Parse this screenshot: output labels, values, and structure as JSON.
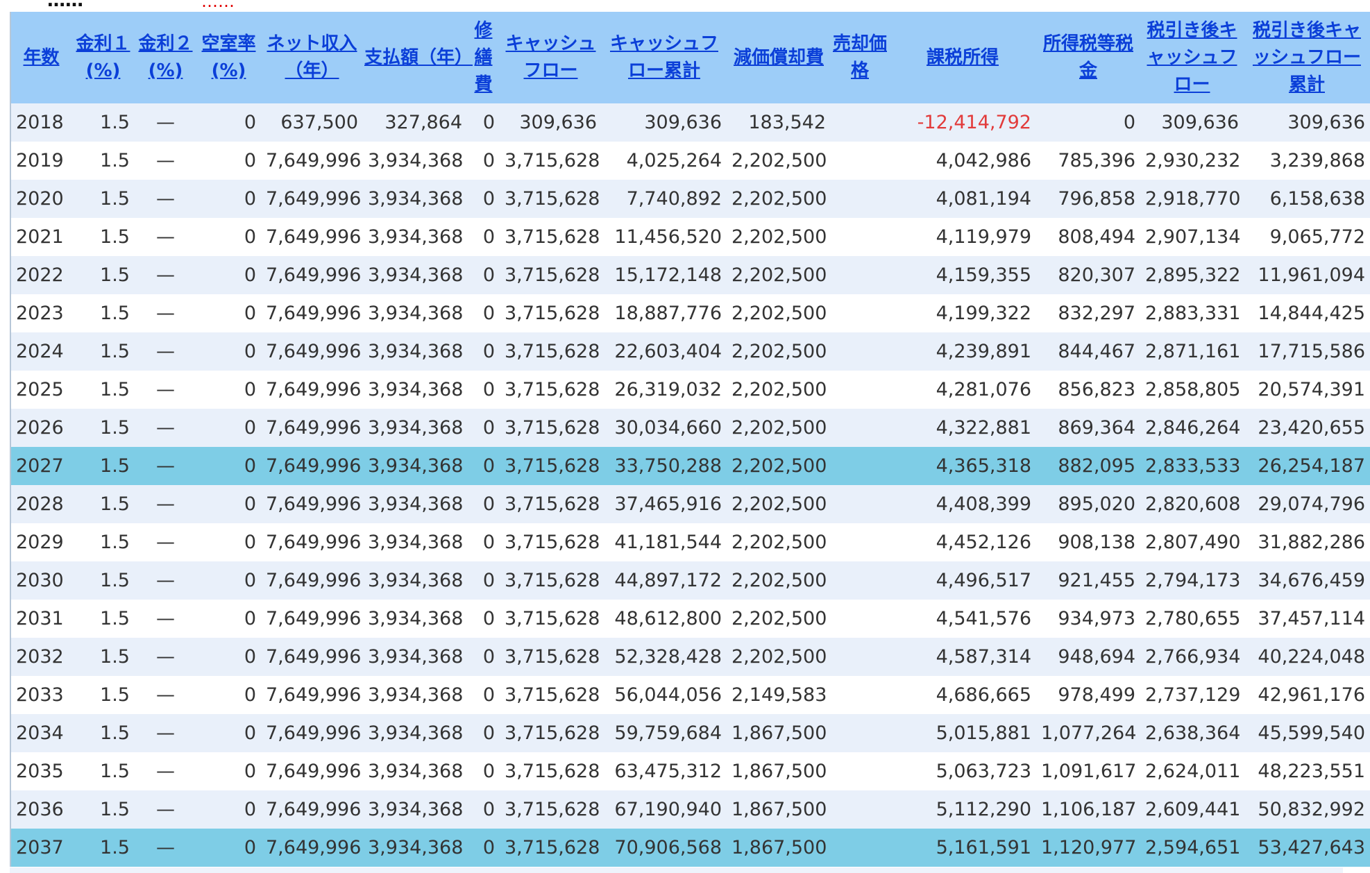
{
  "page": {
    "heading_partial": "……",
    "note_partial": "……"
  },
  "table": {
    "headers": [
      "年数",
      "金利１(%)",
      "金利２(%)",
      "空室率(%)",
      "ネット収入（年）",
      "支払額（年）",
      "修繕費",
      "キャッシュフロー",
      "キャッシュフロー累計",
      "減価償却費",
      "売却価格",
      "課税所得",
      "所得税等税金",
      "税引き後キャッシュフロー",
      "税引き後キャッシュフロー累計"
    ],
    "highlight_years": [
      "2027",
      "2037"
    ],
    "rows": [
      [
        "2018",
        "1.5",
        "—",
        "0",
        "637,500",
        "327,864",
        "0",
        "309,636",
        "309,636",
        "183,542",
        "",
        "-12,414,792",
        "0",
        "309,636",
        "309,636"
      ],
      [
        "2019",
        "1.5",
        "—",
        "0",
        "7,649,996",
        "3,934,368",
        "0",
        "3,715,628",
        "4,025,264",
        "2,202,500",
        "",
        "4,042,986",
        "785,396",
        "2,930,232",
        "3,239,868"
      ],
      [
        "2020",
        "1.5",
        "—",
        "0",
        "7,649,996",
        "3,934,368",
        "0",
        "3,715,628",
        "7,740,892",
        "2,202,500",
        "",
        "4,081,194",
        "796,858",
        "2,918,770",
        "6,158,638"
      ],
      [
        "2021",
        "1.5",
        "—",
        "0",
        "7,649,996",
        "3,934,368",
        "0",
        "3,715,628",
        "11,456,520",
        "2,202,500",
        "",
        "4,119,979",
        "808,494",
        "2,907,134",
        "9,065,772"
      ],
      [
        "2022",
        "1.5",
        "—",
        "0",
        "7,649,996",
        "3,934,368",
        "0",
        "3,715,628",
        "15,172,148",
        "2,202,500",
        "",
        "4,159,355",
        "820,307",
        "2,895,322",
        "11,961,094"
      ],
      [
        "2023",
        "1.5",
        "—",
        "0",
        "7,649,996",
        "3,934,368",
        "0",
        "3,715,628",
        "18,887,776",
        "2,202,500",
        "",
        "4,199,322",
        "832,297",
        "2,883,331",
        "14,844,425"
      ],
      [
        "2024",
        "1.5",
        "—",
        "0",
        "7,649,996",
        "3,934,368",
        "0",
        "3,715,628",
        "22,603,404",
        "2,202,500",
        "",
        "4,239,891",
        "844,467",
        "2,871,161",
        "17,715,586"
      ],
      [
        "2025",
        "1.5",
        "—",
        "0",
        "7,649,996",
        "3,934,368",
        "0",
        "3,715,628",
        "26,319,032",
        "2,202,500",
        "",
        "4,281,076",
        "856,823",
        "2,858,805",
        "20,574,391"
      ],
      [
        "2026",
        "1.5",
        "—",
        "0",
        "7,649,996",
        "3,934,368",
        "0",
        "3,715,628",
        "30,034,660",
        "2,202,500",
        "",
        "4,322,881",
        "869,364",
        "2,846,264",
        "23,420,655"
      ],
      [
        "2027",
        "1.5",
        "—",
        "0",
        "7,649,996",
        "3,934,368",
        "0",
        "3,715,628",
        "33,750,288",
        "2,202,500",
        "",
        "4,365,318",
        "882,095",
        "2,833,533",
        "26,254,187"
      ],
      [
        "2028",
        "1.5",
        "—",
        "0",
        "7,649,996",
        "3,934,368",
        "0",
        "3,715,628",
        "37,465,916",
        "2,202,500",
        "",
        "4,408,399",
        "895,020",
        "2,820,608",
        "29,074,796"
      ],
      [
        "2029",
        "1.5",
        "—",
        "0",
        "7,649,996",
        "3,934,368",
        "0",
        "3,715,628",
        "41,181,544",
        "2,202,500",
        "",
        "4,452,126",
        "908,138",
        "2,807,490",
        "31,882,286"
      ],
      [
        "2030",
        "1.5",
        "—",
        "0",
        "7,649,996",
        "3,934,368",
        "0",
        "3,715,628",
        "44,897,172",
        "2,202,500",
        "",
        "4,496,517",
        "921,455",
        "2,794,173",
        "34,676,459"
      ],
      [
        "2031",
        "1.5",
        "—",
        "0",
        "7,649,996",
        "3,934,368",
        "0",
        "3,715,628",
        "48,612,800",
        "2,202,500",
        "",
        "4,541,576",
        "934,973",
        "2,780,655",
        "37,457,114"
      ],
      [
        "2032",
        "1.5",
        "—",
        "0",
        "7,649,996",
        "3,934,368",
        "0",
        "3,715,628",
        "52,328,428",
        "2,202,500",
        "",
        "4,587,314",
        "948,694",
        "2,766,934",
        "40,224,048"
      ],
      [
        "2033",
        "1.5",
        "—",
        "0",
        "7,649,996",
        "3,934,368",
        "0",
        "3,715,628",
        "56,044,056",
        "2,149,583",
        "",
        "4,686,665",
        "978,499",
        "2,737,129",
        "42,961,176"
      ],
      [
        "2034",
        "1.5",
        "—",
        "0",
        "7,649,996",
        "3,934,368",
        "0",
        "3,715,628",
        "59,759,684",
        "1,867,500",
        "",
        "5,015,881",
        "1,077,264",
        "2,638,364",
        "45,599,540"
      ],
      [
        "2035",
        "1.5",
        "—",
        "0",
        "7,649,996",
        "3,934,368",
        "0",
        "3,715,628",
        "63,475,312",
        "1,867,500",
        "",
        "5,063,723",
        "1,091,617",
        "2,624,011",
        "48,223,551"
      ],
      [
        "2036",
        "1.5",
        "—",
        "0",
        "7,649,996",
        "3,934,368",
        "0",
        "3,715,628",
        "67,190,940",
        "1,867,500",
        "",
        "5,112,290",
        "1,106,187",
        "2,609,441",
        "50,832,992"
      ],
      [
        "2037",
        "1.5",
        "—",
        "0",
        "7,649,996",
        "3,934,368",
        "0",
        "3,715,628",
        "70,906,568",
        "1,867,500",
        "",
        "5,161,591",
        "1,120,977",
        "2,594,651",
        "53,427,643"
      ]
    ]
  },
  "colors": {
    "header_bg": "#9dcdf8",
    "header_link": "#0b3fd8",
    "row_odd": "#e9f0fa",
    "row_even": "#ffffff",
    "row_highlight": "#7ecde6",
    "negative": "#e23b3b",
    "note_red": "#e00000"
  }
}
